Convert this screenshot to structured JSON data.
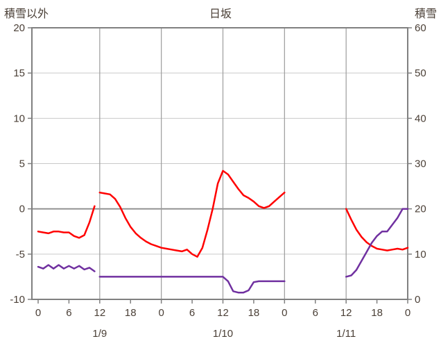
{
  "chart_data": {
    "type": "line",
    "title": "日坂",
    "left_axis": {
      "label": "積雪以外",
      "min": -10,
      "max": 20,
      "ticks": [
        20,
        15,
        10,
        5,
        0,
        -5,
        -10
      ]
    },
    "right_axis": {
      "label": "積雪",
      "min": 0,
      "max": 60,
      "ticks": [
        60,
        50,
        40,
        30,
        20,
        10,
        0
      ]
    },
    "x_axis": {
      "total_hours": 72,
      "hour_tick_labels": [
        "0",
        "6",
        "12",
        "18",
        "0",
        "6",
        "12",
        "18",
        "0",
        "6",
        "12",
        "18",
        "0"
      ],
      "gridline_hours": [
        12,
        24,
        36,
        48,
        60
      ],
      "date_labels": [
        {
          "hour": 12,
          "label": "1/9"
        },
        {
          "hour": 36,
          "label": "1/10"
        },
        {
          "hour": 60,
          "label": "1/11"
        }
      ]
    },
    "grid": true,
    "legend": "none",
    "series": [
      {
        "name": "積雪以外",
        "axis": "left",
        "color": "#ff0000",
        "segments": [
          [
            [
              0,
              -2.5
            ],
            [
              1,
              -2.6
            ],
            [
              2,
              -2.7
            ],
            [
              3,
              -2.5
            ],
            [
              4,
              -2.5
            ],
            [
              5,
              -2.6
            ],
            [
              6,
              -2.6
            ],
            [
              7,
              -3.0
            ],
            [
              8,
              -3.2
            ],
            [
              9,
              -2.9
            ],
            [
              10,
              -1.5
            ],
            [
              11,
              0.3
            ]
          ],
          [
            [
              12,
              1.8
            ],
            [
              13,
              1.7
            ],
            [
              14,
              1.6
            ],
            [
              15,
              1.1
            ],
            [
              16,
              0.2
            ],
            [
              17,
              -1.0
            ],
            [
              18,
              -2.0
            ],
            [
              19,
              -2.7
            ],
            [
              20,
              -3.2
            ],
            [
              21,
              -3.6
            ],
            [
              22,
              -3.9
            ],
            [
              23,
              -4.1
            ],
            [
              24,
              -4.3
            ],
            [
              25,
              -4.4
            ],
            [
              26,
              -4.5
            ],
            [
              27,
              -4.6
            ],
            [
              28,
              -4.7
            ],
            [
              29,
              -4.5
            ],
            [
              30,
              -5.0
            ],
            [
              31,
              -5.3
            ],
            [
              32,
              -4.3
            ],
            [
              33,
              -2.3
            ],
            [
              34,
              0.0
            ],
            [
              35,
              2.8
            ],
            [
              36,
              4.2
            ],
            [
              37,
              3.8
            ],
            [
              38,
              3.0
            ],
            [
              39,
              2.2
            ],
            [
              40,
              1.5
            ],
            [
              41,
              1.2
            ],
            [
              42,
              0.8
            ],
            [
              43,
              0.3
            ],
            [
              44,
              0.1
            ],
            [
              45,
              0.3
            ],
            [
              46,
              0.8
            ],
            [
              47,
              1.3
            ],
            [
              48,
              1.8
            ]
          ],
          [
            [
              60,
              0.0
            ],
            [
              61,
              -1.2
            ],
            [
              62,
              -2.3
            ],
            [
              63,
              -3.1
            ],
            [
              64,
              -3.7
            ],
            [
              65,
              -4.1
            ],
            [
              66,
              -4.4
            ],
            [
              67,
              -4.5
            ],
            [
              68,
              -4.6
            ],
            [
              69,
              -4.5
            ],
            [
              70,
              -4.4
            ],
            [
              71,
              -4.5
            ],
            [
              72,
              -4.3
            ]
          ]
        ]
      },
      {
        "name": "積雪",
        "axis": "right",
        "color": "#7030a0",
        "segments": [
          [
            [
              0,
              7.2
            ],
            [
              1,
              6.8
            ],
            [
              2,
              7.6
            ],
            [
              3,
              6.8
            ],
            [
              4,
              7.6
            ],
            [
              5,
              6.8
            ],
            [
              6,
              7.4
            ],
            [
              7,
              6.8
            ],
            [
              8,
              7.4
            ],
            [
              9,
              6.6
            ],
            [
              10,
              7.0
            ],
            [
              11,
              6.2
            ]
          ],
          [
            [
              12,
              5
            ],
            [
              36,
              5
            ],
            [
              37,
              4
            ],
            [
              38,
              1.8
            ],
            [
              39,
              1.5
            ],
            [
              40,
              1.5
            ],
            [
              41,
              2
            ],
            [
              42,
              3.8
            ],
            [
              43,
              4
            ],
            [
              48,
              4
            ]
          ],
          [
            [
              60,
              5
            ],
            [
              61,
              5.3
            ],
            [
              62,
              6.5
            ],
            [
              63,
              8.5
            ],
            [
              64,
              10.5
            ],
            [
              65,
              12.5
            ],
            [
              66,
              14
            ],
            [
              67,
              15
            ],
            [
              68,
              15
            ],
            [
              69,
              16.5
            ],
            [
              70,
              18
            ],
            [
              71,
              20
            ],
            [
              72,
              20
            ]
          ]
        ]
      }
    ]
  }
}
